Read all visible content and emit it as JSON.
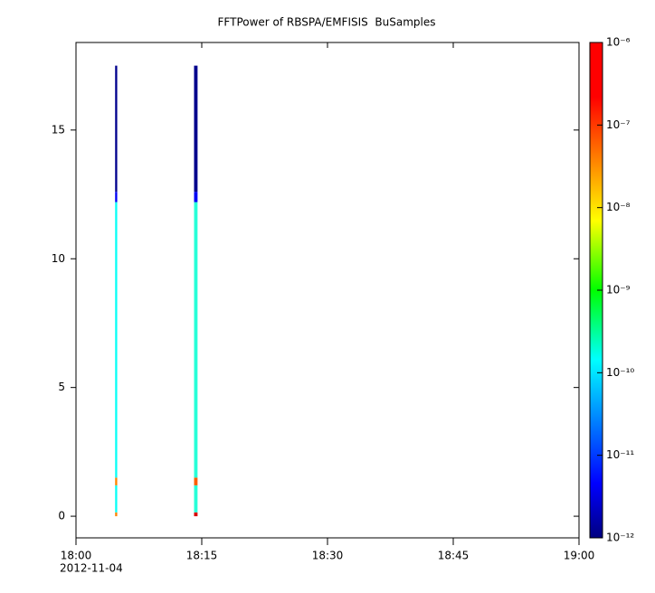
{
  "chart_data": {
    "type": "spectrogram",
    "title": "FFTPower of RBSPA/EMFISIS  BuSamples",
    "date": "2012-11-04",
    "xlim": [
      "18:00",
      "19:00"
    ],
    "xticks": [
      "18:00",
      "18:15",
      "18:30",
      "18:45",
      "19:00"
    ],
    "ylim": [
      -0.84,
      18.4
    ],
    "yticks": [
      0,
      5,
      10,
      15
    ],
    "y_edges": [
      0,
      0.15,
      1.2,
      1.5,
      12.2,
      12.6,
      17.5
    ],
    "columns": [
      {
        "start": "18:04:40",
        "end": "18:04:55",
        "z": [
          3e-08,
          2e-10,
          3e-08,
          2e-10,
          5e-12,
          1.2e-12
        ]
      },
      {
        "start": "18:14:05",
        "end": "18:14:30",
        "z": [
          3e-07,
          3e-10,
          5e-08,
          3e-10,
          5e-12,
          1.2e-12
        ]
      }
    ],
    "colormap": "jet",
    "zscale": "log",
    "zlim": [
      1e-12,
      1e-06
    ],
    "zticks": [
      {
        "value": 1e-06,
        "label": "10⁻⁶"
      },
      {
        "value": 1e-07,
        "label": "10⁻⁷"
      },
      {
        "value": 1e-08,
        "label": "10⁻⁸"
      },
      {
        "value": 1e-09,
        "label": "10⁻⁹"
      },
      {
        "value": 1e-10,
        "label": "10⁻¹⁰"
      },
      {
        "value": 1e-11,
        "label": "10⁻¹¹"
      },
      {
        "value": 1e-12,
        "label": "10⁻¹²"
      }
    ]
  }
}
